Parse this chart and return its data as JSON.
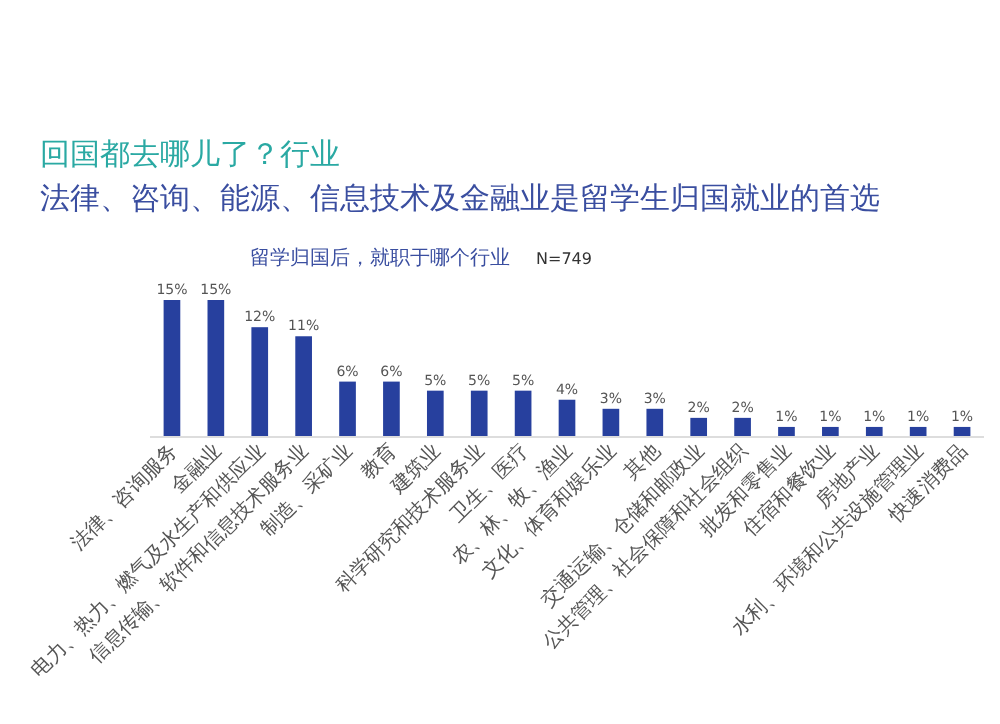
{
  "chart_data": {
    "type": "bar",
    "title": "回国都去哪儿了？行业",
    "subtitle": "法律、咨询、能源、信息技术及金融业是留学生归国就业的首选",
    "xlabel": "留学归国后，就职于哪个行业",
    "annotations": [
      "N=749"
    ],
    "data_labels": true,
    "color": "#27409e",
    "categories": [
      "法律、咨询服务",
      "金融业",
      "电力、热力、燃气及水生产和供应业",
      "信息传输、软件和信息技术服务业",
      "制造、采矿业",
      "教育",
      "建筑业",
      "科学研究和技术服务业",
      "卫生、医疗",
      "农、林、牧、渔业",
      "文化、体育和娱乐业",
      "其他",
      "交通运输、仓储和邮政业",
      "公共管理、社会保障和社会组织",
      "批发和零售业",
      "住宿和餐饮业",
      "房地产业",
      "水利、环境和公共设施管理业",
      "快速消费品"
    ],
    "values": [
      15,
      15,
      12,
      11,
      6,
      6,
      5,
      5,
      5,
      4,
      3,
      3,
      2,
      2,
      1,
      1,
      1,
      1,
      1
    ],
    "value_labels": [
      "15%",
      "15%",
      "12%",
      "11%",
      "6%",
      "6%",
      "5%",
      "5%",
      "5%",
      "4%",
      "3%",
      "3%",
      "2%",
      "2%",
      "1%",
      "1%",
      "1%",
      "1%",
      "1%"
    ]
  }
}
